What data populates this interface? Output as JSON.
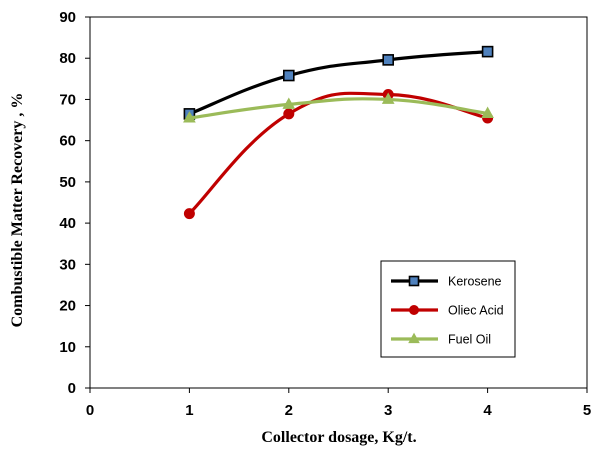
{
  "chart_data": {
    "type": "line",
    "xlabel": "Collector dosage, Kg/t.",
    "ylabel": "Combustible Matter Recovery , %",
    "xlim": [
      0,
      5
    ],
    "ylim": [
      0,
      90
    ],
    "xticks": [
      0,
      1,
      2,
      3,
      4,
      5
    ],
    "yticks": [
      0,
      10,
      20,
      30,
      40,
      50,
      60,
      70,
      80,
      90
    ],
    "grid": false,
    "legend_position": "bottom-right",
    "smooth": true,
    "series": [
      {
        "name": "Kerosene",
        "color": "#000000",
        "marker": "square",
        "marker_fill": "#4f81bd",
        "x": [
          1,
          2,
          3,
          4
        ],
        "y": [
          66.5,
          75.8,
          79.6,
          81.6
        ]
      },
      {
        "name": "Oliec Acid",
        "color": "#c00000",
        "marker": "circle",
        "marker_fill": "#c00000",
        "x": [
          1,
          2,
          3,
          4
        ],
        "y": [
          42.3,
          66.5,
          71.2,
          65.5
        ]
      },
      {
        "name": "Fuel Oil",
        "color": "#9bbb59",
        "marker": "triangle",
        "marker_fill": "#9bbb59",
        "x": [
          1,
          2,
          3,
          4
        ],
        "y": [
          65.5,
          68.8,
          70.0,
          66.6
        ]
      }
    ]
  }
}
